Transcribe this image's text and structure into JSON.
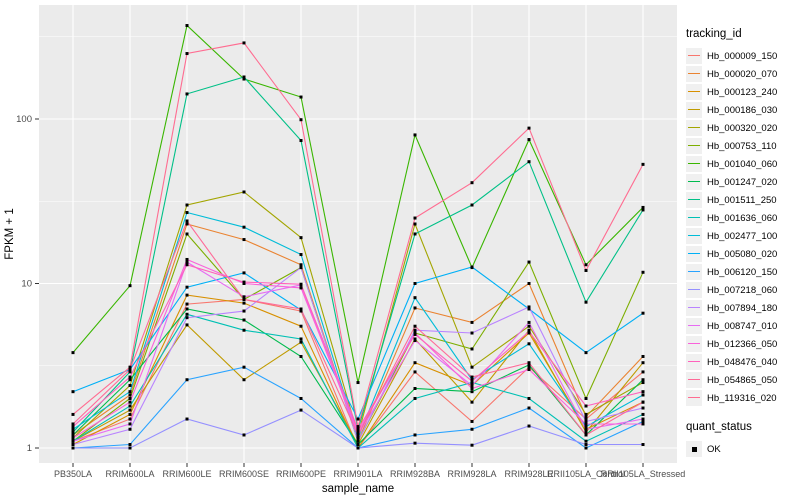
{
  "figure": {
    "y_axis_title": "FPKM + 1",
    "x_axis_title": "sample_name",
    "y_tick_labels": [
      "1",
      "10",
      "100"
    ],
    "legend": {
      "tracking_title": "tracking_id",
      "quant_title": "quant_status",
      "quant_items": [
        {
          "label": "OK",
          "marker": "black-square"
        }
      ]
    },
    "colors": {
      "panel_bg": "#EBEBEB",
      "grid": "#FFFFFF",
      "axis_text": "#4D4D4D",
      "tick_mark": "#333333",
      "legend_key_bg": "#F0F0F0",
      "point": "#000000"
    }
  },
  "chart_data": {
    "type": "line",
    "title": "",
    "xlabel": "sample_name",
    "ylabel": "FPKM + 1",
    "y_scale": "log10",
    "ylim": [
      0.81,
      500
    ],
    "y_major_ticks": [
      1,
      10,
      100
    ],
    "y_minor_gridlines": [
      3.162,
      31.62,
      316.2
    ],
    "grid": "on",
    "legend_position": "right",
    "point_marker": "black-square",
    "categories": [
      "PB350LA",
      "RRIM600LA",
      "RRIM600LE",
      "RRIM600SE",
      "RRIM600PE",
      "RRIM901LA",
      "RRIM928BA",
      "RRIM928LA",
      "RRIM928LE",
      "RRII105LA_Control",
      "RRII105LA_Stressed"
    ],
    "series": [
      {
        "name": "Hb_000009_150",
        "color": "#F8766D",
        "values": [
          1.1,
          1.5,
          7.5,
          8.0,
          6.8,
          1.0,
          2.9,
          1.45,
          3.1,
          1.5,
          2.9
        ]
      },
      {
        "name": "Hb_000020_070",
        "color": "#EA8331",
        "values": [
          1.2,
          2.1,
          23,
          18.5,
          13,
          1.1,
          7.1,
          5.8,
          10,
          1.55,
          3.6
        ]
      },
      {
        "name": "Hb_000123_240",
        "color": "#D89000",
        "values": [
          1.05,
          1.6,
          8.5,
          7.6,
          5.5,
          1.0,
          3.3,
          2.4,
          5.0,
          1.3,
          1.9
        ]
      },
      {
        "name": "Hb_000186_030",
        "color": "#C09B00",
        "values": [
          1.1,
          1.7,
          5.6,
          2.6,
          4.4,
          1.05,
          4.6,
          1.9,
          5.2,
          1.25,
          3.3
        ]
      },
      {
        "name": "Hb_000320_020",
        "color": "#A3A500",
        "values": [
          1.15,
          2.4,
          30,
          36,
          19,
          1.2,
          23,
          3.1,
          5.5,
          1.6,
          2.5
        ]
      },
      {
        "name": "Hb_000753_110",
        "color": "#7CAE00",
        "values": [
          1.1,
          2.0,
          20,
          8.0,
          12.5,
          1.1,
          5.0,
          4.0,
          13.5,
          2.0,
          11.7
        ]
      },
      {
        "name": "Hb_001040_060",
        "color": "#39B600",
        "values": [
          3.8,
          9.7,
          370,
          175,
          136,
          2.5,
          80,
          12.5,
          75,
          13,
          29
        ]
      },
      {
        "name": "Hb_001247_020",
        "color": "#00BB4E",
        "values": [
          1.2,
          2.6,
          7.0,
          6.0,
          3.6,
          1.05,
          2.3,
          2.2,
          3.2,
          1.2,
          2.6
        ]
      },
      {
        "name": "Hb_001511_250",
        "color": "#00C087",
        "values": [
          1.25,
          2.9,
          142,
          180,
          74,
          1.3,
          20,
          30,
          55,
          7.7,
          28
        ]
      },
      {
        "name": "Hb_001636_060",
        "color": "#00C0B4",
        "values": [
          1.1,
          1.8,
          6.5,
          5.2,
          4.6,
          1.0,
          2.0,
          2.5,
          2.0,
          1.1,
          1.6
        ]
      },
      {
        "name": "Hb_002477_100",
        "color": "#00BCD8",
        "values": [
          1.3,
          2.2,
          27,
          22,
          15,
          1.15,
          8.2,
          2.6,
          4.3,
          1.35,
          2.1
        ]
      },
      {
        "name": "Hb_005080_020",
        "color": "#00B0F6",
        "values": [
          2.2,
          3.0,
          9.5,
          11.6,
          6.9,
          1.5,
          10,
          12.6,
          7.0,
          3.8,
          6.6
        ]
      },
      {
        "name": "Hb_006120_150",
        "color": "#29A3FF",
        "values": [
          1.0,
          1.05,
          2.6,
          3.1,
          2.0,
          1.0,
          1.2,
          1.3,
          1.75,
          1.0,
          1.45
        ]
      },
      {
        "name": "Hb_007218_060",
        "color": "#9590FF",
        "values": [
          1.0,
          1.0,
          1.5,
          1.2,
          1.7,
          1.0,
          1.07,
          1.04,
          1.36,
          1.05,
          1.05
        ]
      },
      {
        "name": "Hb_007894_180",
        "color": "#B983FF",
        "values": [
          1.05,
          1.3,
          6.2,
          6.8,
          12.5,
          1.1,
          5.2,
          5.0,
          7.2,
          1.45,
          1.75
        ]
      },
      {
        "name": "Hb_008747_010",
        "color": "#E76BF3",
        "values": [
          1.1,
          1.4,
          13.5,
          8.3,
          9.8,
          1.2,
          4.5,
          2.4,
          5.8,
          1.3,
          1.5
        ]
      },
      {
        "name": "Hb_012366_050",
        "color": "#FA62DB",
        "values": [
          1.15,
          1.9,
          14,
          10,
          9.4,
          1.25,
          5.0,
          2.3,
          3.0,
          1.4,
          1.4
        ]
      },
      {
        "name": "Hb_048476_040",
        "color": "#FF62BC",
        "values": [
          1.35,
          2.7,
          13,
          10.2,
          9.9,
          1.3,
          4.9,
          2.55,
          5.1,
          1.8,
          2.2
        ]
      },
      {
        "name": "Hb_054865_050",
        "color": "#FF6A98",
        "values": [
          1.4,
          3.0,
          24,
          8.0,
          7.0,
          1.2,
          5.5,
          2.7,
          3.3,
          1.2,
          1.9
        ]
      },
      {
        "name": "Hb_119316_020",
        "color": "#FF6C91",
        "values": [
          1.6,
          3.1,
          250,
          290,
          99,
          1.35,
          25,
          41,
          88,
          12,
          53
        ]
      }
    ]
  }
}
